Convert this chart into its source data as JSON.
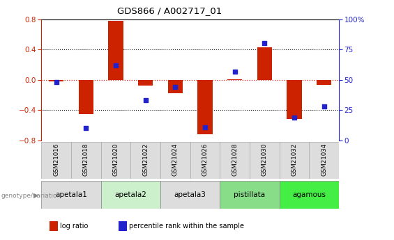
{
  "title": "GDS866 / A002717_01",
  "samples": [
    "GSM21016",
    "GSM21018",
    "GSM21020",
    "GSM21022",
    "GSM21024",
    "GSM21026",
    "GSM21028",
    "GSM21030",
    "GSM21032",
    "GSM21034"
  ],
  "log_ratio": [
    -0.02,
    -0.45,
    0.78,
    -0.08,
    -0.18,
    -0.72,
    0.01,
    0.43,
    -0.52,
    -0.07
  ],
  "percentile_rank": [
    48,
    10,
    62,
    33,
    44,
    11,
    57,
    80,
    19,
    28
  ],
  "ylim_left": [
    -0.8,
    0.8
  ],
  "ylim_right": [
    0,
    100
  ],
  "yticks_left": [
    -0.8,
    -0.4,
    0,
    0.4,
    0.8
  ],
  "yticks_right": [
    0,
    25,
    50,
    75,
    100
  ],
  "bar_color": "#cc2200",
  "dot_color": "#2222cc",
  "groups": [
    {
      "name": "apetala1",
      "start": 0,
      "end": 2,
      "color": "#dddddd"
    },
    {
      "name": "apetala2",
      "start": 2,
      "end": 4,
      "color": "#ccf0cc"
    },
    {
      "name": "apetala3",
      "start": 4,
      "end": 6,
      "color": "#dddddd"
    },
    {
      "name": "pistillata",
      "start": 6,
      "end": 8,
      "color": "#88dd88"
    },
    {
      "name": "agamous",
      "start": 8,
      "end": 10,
      "color": "#44ee44"
    }
  ],
  "genotype_label": "genotype/variation",
  "legend_bar_label": "log ratio",
  "legend_dot_label": "percentile rank within the sample"
}
